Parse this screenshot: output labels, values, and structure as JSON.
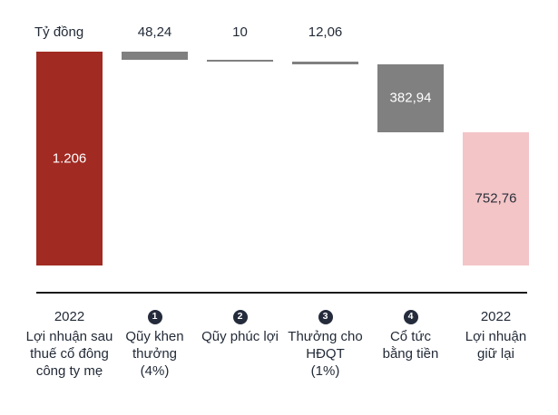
{
  "title": {
    "unit_label": "Tỷ đồng"
  },
  "colors": {
    "start_bar": "#A12A22",
    "delta_bar": "#808080",
    "end_bar": "#F3C5C7",
    "badge": "#242C3C",
    "text": "#232B38",
    "value_inside_light": "#ffffff",
    "value_inside_dark": "#2A2F3A",
    "axis": "#1a1a1a"
  },
  "chart_data": {
    "type": "bar",
    "subtype": "waterfall",
    "unit": "Tỷ đồng",
    "axis_max": 1206,
    "axis_min": 0,
    "grid": false,
    "legend": false,
    "columns": [
      {
        "value": 1206,
        "display": "1.206",
        "kind": "start",
        "year": "2022",
        "name_lines": [
          "Lợi nhuận sau",
          "thuế cổ đông",
          "công ty mẹ"
        ],
        "value_label_position": "inside"
      },
      {
        "value": 48.24,
        "display": "48,24",
        "kind": "decrease",
        "badge": "1",
        "name_lines": [
          "Qũy khen",
          "thưởng",
          "(4%)"
        ],
        "value_label_position": "above"
      },
      {
        "value": 10,
        "display": "10",
        "kind": "decrease",
        "badge": "2",
        "name_lines": [
          "Qũy phúc lợi"
        ],
        "value_label_position": "above"
      },
      {
        "value": 12.06,
        "display": "12,06",
        "kind": "decrease",
        "badge": "3",
        "name_lines": [
          "Thưởng cho",
          "HĐQT",
          "(1%)"
        ],
        "value_label_position": "above"
      },
      {
        "value": 382.94,
        "display": "382,94",
        "kind": "decrease",
        "badge": "4",
        "name_lines": [
          "Cổ tức",
          "bằng tiền"
        ],
        "value_label_position": "inside"
      },
      {
        "value": 752.76,
        "display": "752,76",
        "kind": "end",
        "year": "2022",
        "name_lines": [
          "Lợi nhuận",
          "giữ lại"
        ],
        "value_label_position": "inside"
      }
    ]
  }
}
